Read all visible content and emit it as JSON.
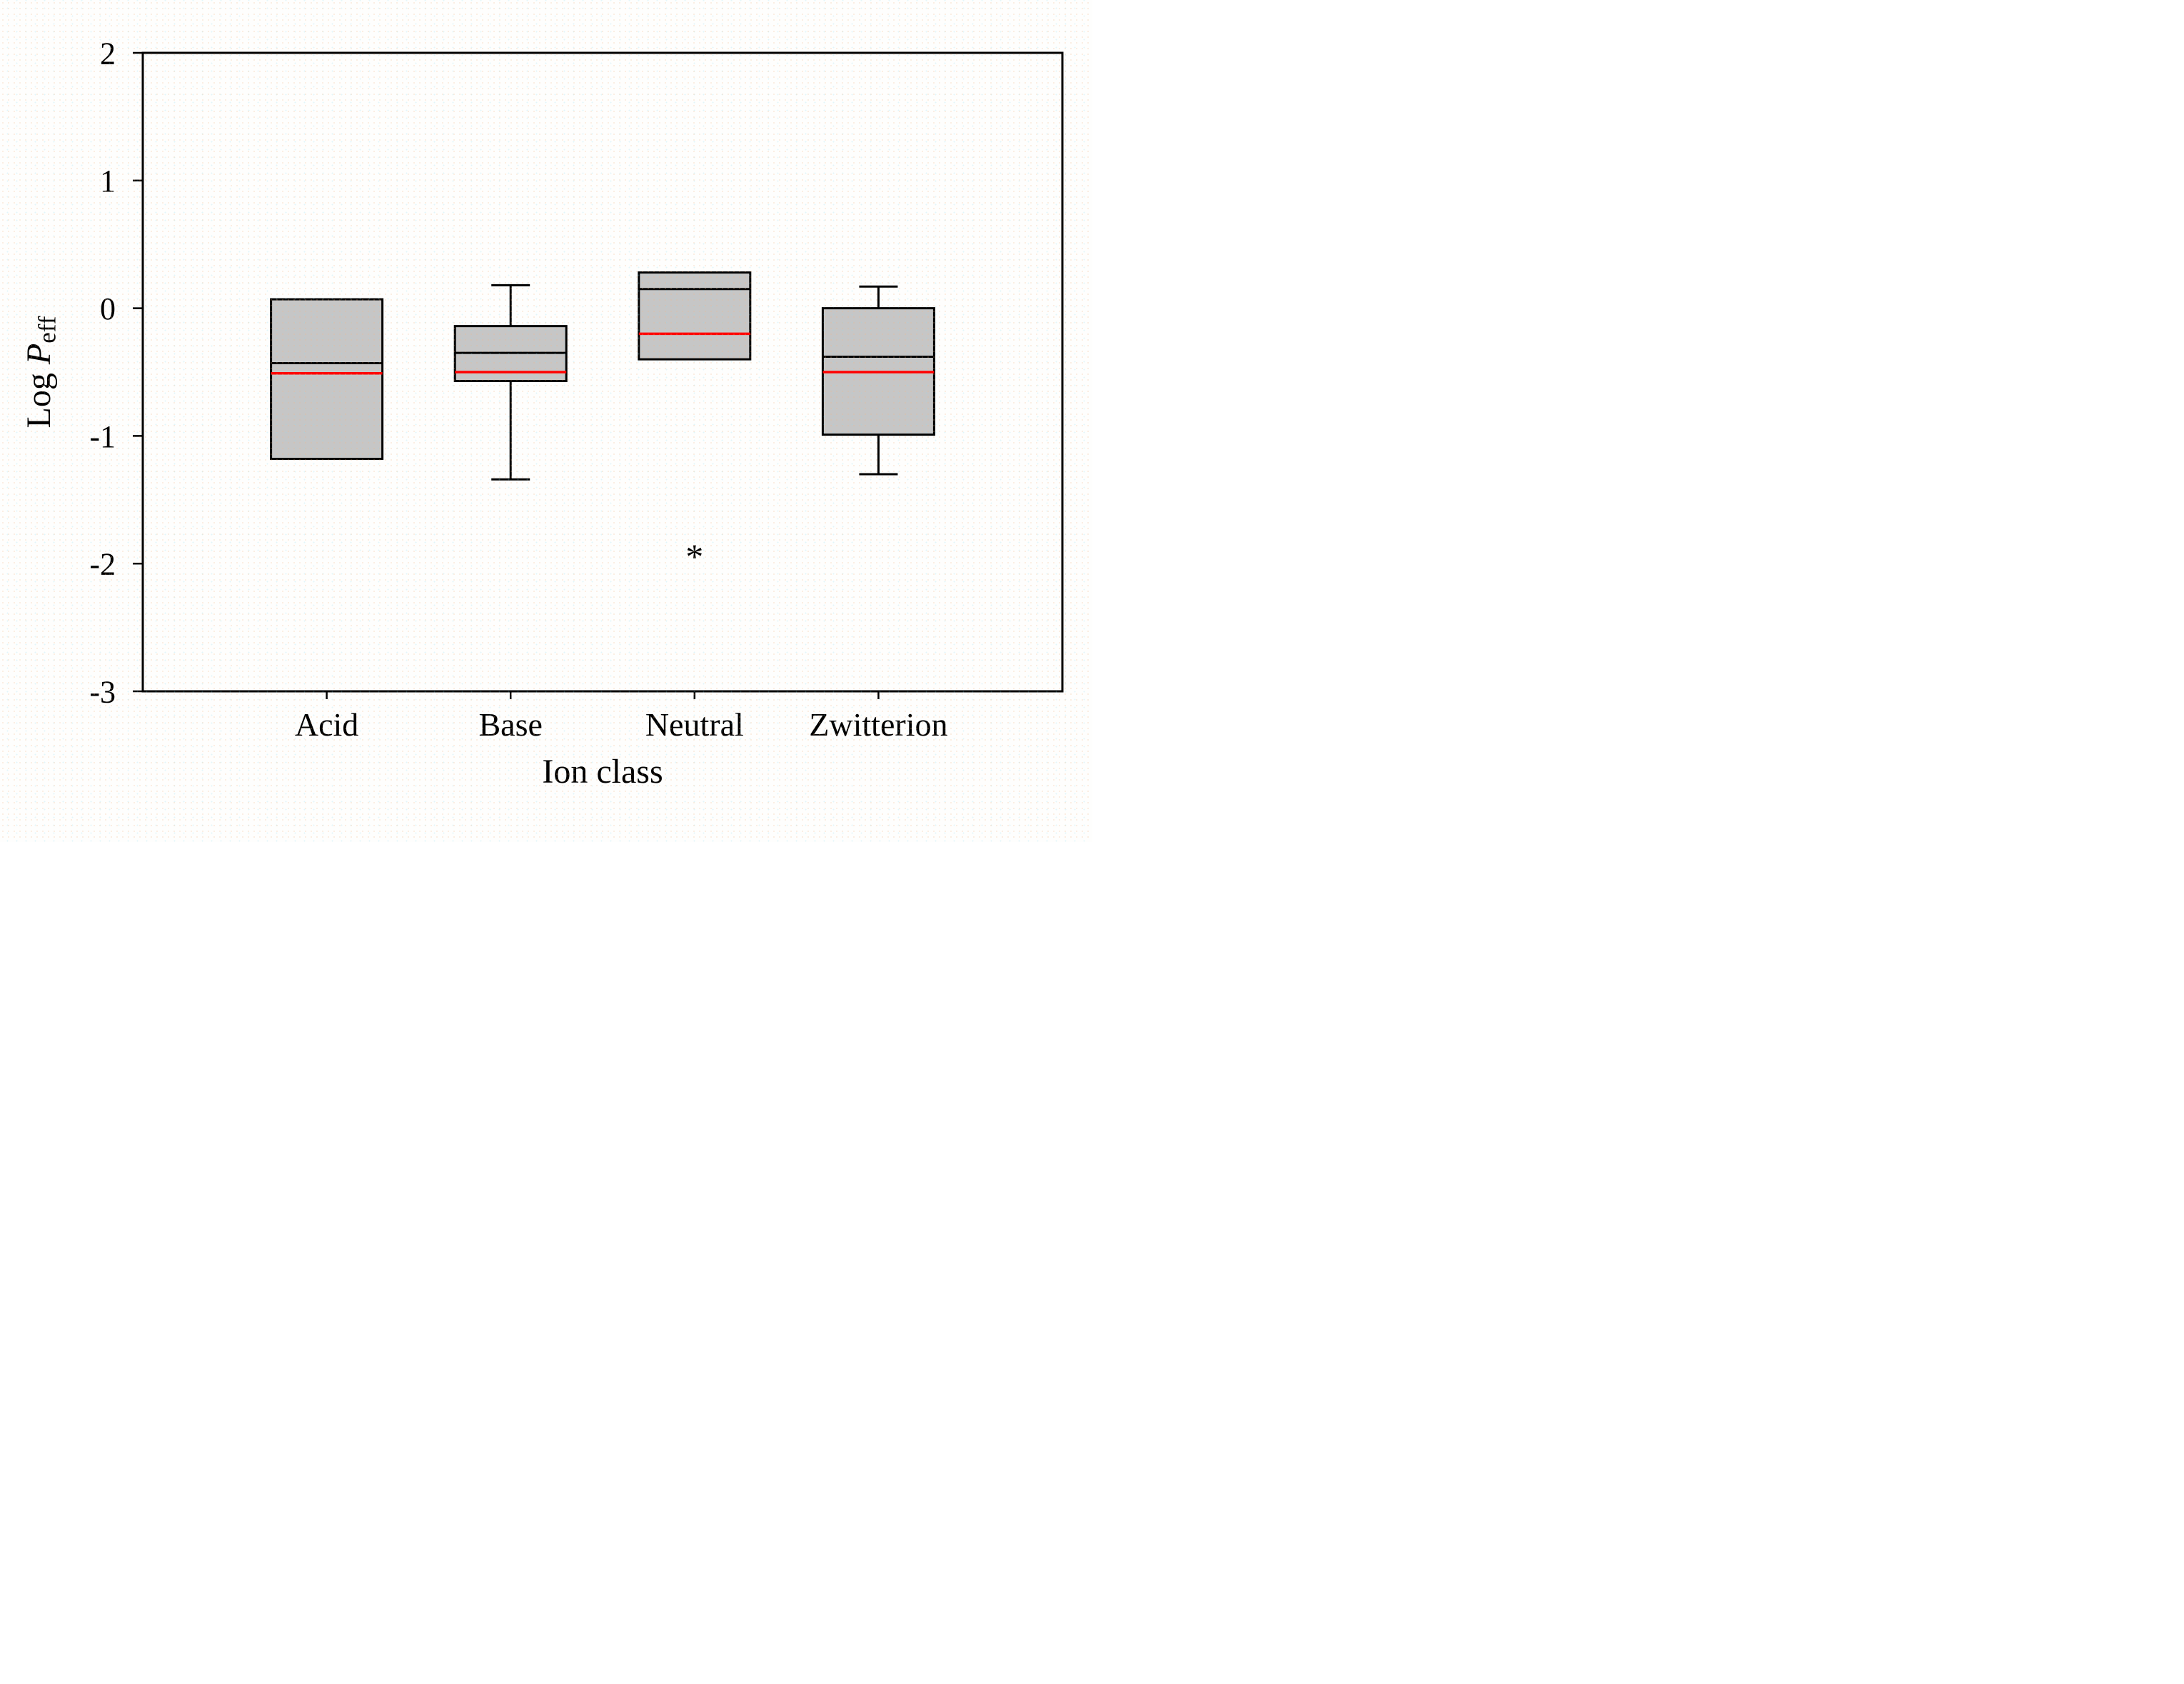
{
  "figure": {
    "kind": "boxplot-figure",
    "background_color": "#fefefd",
    "frame_color": "#000000",
    "aria_label": "Box plot of Log Peff by Ion class"
  },
  "chart_data": {
    "type": "box",
    "title": "",
    "xlabel": "Ion class",
    "ylabel": {
      "prefix": "Log ",
      "italic": "P",
      "subscript": "eff"
    },
    "ylim": [
      -3,
      2
    ],
    "yticks": [
      2,
      1,
      0,
      -1,
      -2,
      -3
    ],
    "xlim": [
      0,
      5
    ],
    "grid": false,
    "legend": null,
    "box_fill_color": "#c6c6c6",
    "line_color": "#000000",
    "median_color": "#000000",
    "mean_color": "#ff0000",
    "outlier_symbol": "*",
    "categories": [
      "Acid",
      "Base",
      "Neutral",
      "Zwitterion"
    ],
    "boxes": [
      {
        "category": "Acid",
        "x": 1,
        "q1": -1.18,
        "median": -0.43,
        "mean": -0.51,
        "q3": 0.07,
        "whisker_low": null,
        "whisker_high": null,
        "outliers": []
      },
      {
        "category": "Base",
        "x": 2,
        "q1": -0.57,
        "median": -0.35,
        "mean": -0.5,
        "q3": -0.14,
        "whisker_low": -1.34,
        "whisker_high": 0.18,
        "outliers": []
      },
      {
        "category": "Neutral",
        "x": 3,
        "q1": -0.4,
        "median": 0.15,
        "mean": -0.2,
        "q3": 0.28,
        "whisker_low": null,
        "whisker_high": null,
        "outliers": [
          -1.91
        ]
      },
      {
        "category": "Zwitterion",
        "x": 4,
        "q1": -0.99,
        "median": -0.38,
        "mean": -0.5,
        "q3": 0.0,
        "whisker_low": -1.3,
        "whisker_high": 0.17,
        "outliers": []
      }
    ]
  }
}
